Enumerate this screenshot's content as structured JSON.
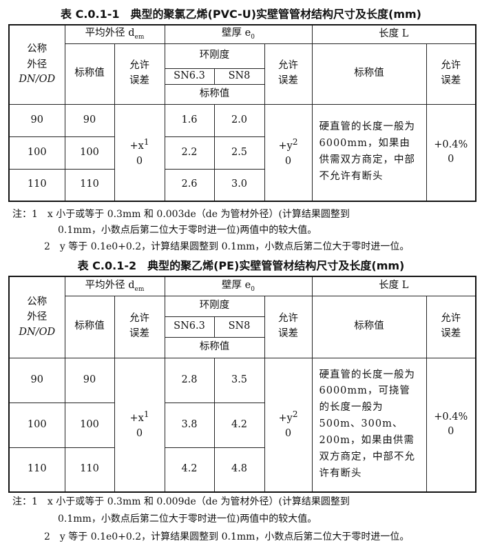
{
  "table1": {
    "title": "表 C.0.1-1　典型的聚氯乙烯(PVC-U)实壁管管材结构尺寸及长度(mm)",
    "headers": {
      "dn": "公称外径",
      "dn_sym": "DN/OD",
      "dem": "平均外径 d",
      "dem_sub": "em",
      "wall": "壁厚 e",
      "wall_sub": "0",
      "length": "长度 L",
      "nominal": "标称值",
      "tolerance": "允许误差",
      "ring": "环刚度",
      "sn1": "SN6.3",
      "sn2": "SN8",
      "wall_nominal": "标称值"
    },
    "rows": [
      {
        "dn": "90",
        "dem": "90",
        "sn63": "1.6",
        "sn8": "2.0"
      },
      {
        "dn": "100",
        "dem": "100",
        "sn63": "2.2",
        "sn8": "2.5"
      },
      {
        "dn": "110",
        "dem": "110",
        "sn63": "2.6",
        "sn8": "3.0"
      }
    ],
    "dem_tol": "+x",
    "dem_tol_sup": "1",
    "dem_tol_low": "0",
    "wall_tol": "+y",
    "wall_tol_sup": "2",
    "wall_tol_low": "0",
    "length_text": "硬直管的长度一般为6000mm，如果由供需双方商定，中部不允许有断头",
    "length_tol": "+0.4%",
    "length_tol_low": "0",
    "notes": [
      "注：1　x 小于或等于 0.3mm 和 0.003de（de 为管材外径）(计算结果圆整到",
      "0.1mm，小数点后第二位大于零时进一位)两值中的较大值。",
      "2　y 等于 0.1e0+0.2，计算结果圆整到 0.1mm，小数点后第二位大于零时进一位。"
    ]
  },
  "table2": {
    "title": "表 C.0.1-2　典型的聚乙烯(PE)实壁管管材结构尺寸及长度(mm)",
    "rows": [
      {
        "dn": "90",
        "dem": "90",
        "sn63": "2.8",
        "sn8": "3.5"
      },
      {
        "dn": "100",
        "dem": "100",
        "sn63": "3.8",
        "sn8": "4.2"
      },
      {
        "dn": "110",
        "dem": "110",
        "sn63": "4.2",
        "sn8": "4.8"
      }
    ],
    "length_text": "硬直管的长度一般为6000mm，可挠管的长度一般为500m、300m、200m，如果由供需双方商定，中部不允许有断头",
    "notes": [
      "注：1　x 小于或等于 0.3mm 和 0.009de（de 为管材外径）(计算结果圆整到",
      "0.1mm，小数点后第二位大于零时进一位)两值中的较大值。",
      "2　y 等于 0.1e0+0.2，计算结果圆整到 0.1mm，小数点后第二位大于零时进一位。"
    ]
  }
}
